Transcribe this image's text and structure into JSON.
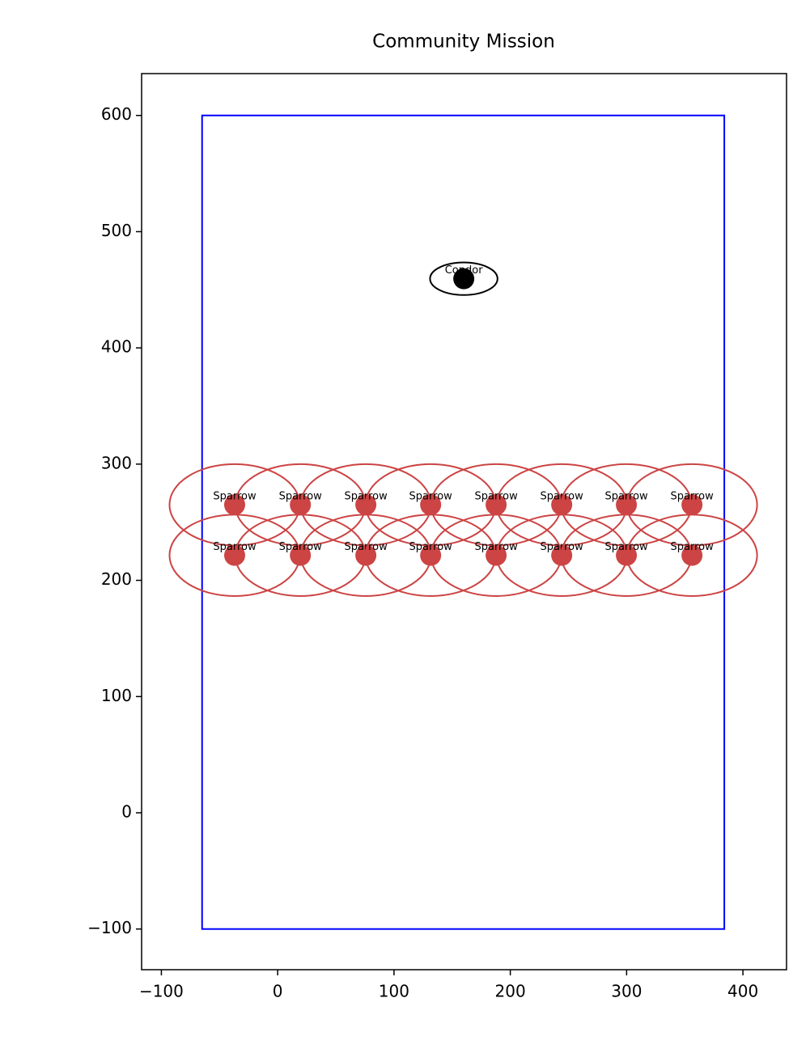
{
  "chart_data": {
    "type": "scatter",
    "title": "Community Mission",
    "xlim": [
      -117,
      437.5
    ],
    "ylim": [
      -135,
      636
    ],
    "xticks": [
      {
        "value": -100,
        "label": "−100"
      },
      0,
      100,
      200,
      300,
      400
    ],
    "yticks": [
      {
        "value": -100,
        "label": "−100"
      },
      0,
      100,
      200,
      300,
      400,
      500,
      600
    ],
    "region": {
      "x": [
        -65,
        384
      ],
      "y": [
        -100,
        600
      ],
      "color": "#0000ff"
    },
    "agents": [
      {
        "label": "Condor",
        "x": 160,
        "y": 459.5,
        "rx": 29,
        "ry": 14,
        "color": "#000000"
      },
      {
        "label": "Sparrow",
        "x": -37,
        "y": 265,
        "rx": 56,
        "ry": 35,
        "color": "#cc4444"
      },
      {
        "label": "Sparrow",
        "x": 19.5,
        "y": 265,
        "rx": 56,
        "ry": 35,
        "color": "#cc4444"
      },
      {
        "label": "Sparrow",
        "x": 75.8,
        "y": 265,
        "rx": 56,
        "ry": 35,
        "color": "#cc4444"
      },
      {
        "label": "Sparrow",
        "x": 131.5,
        "y": 265,
        "rx": 56,
        "ry": 35,
        "color": "#cc4444"
      },
      {
        "label": "Sparrow",
        "x": 187.8,
        "y": 265,
        "rx": 56,
        "ry": 35,
        "color": "#cc4444"
      },
      {
        "label": "Sparrow",
        "x": 244.2,
        "y": 265,
        "rx": 56,
        "ry": 35,
        "color": "#cc4444"
      },
      {
        "label": "Sparrow",
        "x": 299.8,
        "y": 265,
        "rx": 56,
        "ry": 35,
        "color": "#cc4444"
      },
      {
        "label": "Sparrow",
        "x": 356.2,
        "y": 265,
        "rx": 56,
        "ry": 35,
        "color": "#cc4444"
      },
      {
        "label": "Sparrow",
        "x": -37,
        "y": 221.5,
        "rx": 56,
        "ry": 35,
        "color": "#cc4444"
      },
      {
        "label": "Sparrow",
        "x": 19.5,
        "y": 221.5,
        "rx": 56,
        "ry": 35,
        "color": "#cc4444"
      },
      {
        "label": "Sparrow",
        "x": 75.8,
        "y": 221.5,
        "rx": 56,
        "ry": 35,
        "color": "#cc4444"
      },
      {
        "label": "Sparrow",
        "x": 131.5,
        "y": 221.5,
        "rx": 56,
        "ry": 35,
        "color": "#cc4444"
      },
      {
        "label": "Sparrow",
        "x": 187.8,
        "y": 221.5,
        "rx": 56,
        "ry": 35,
        "color": "#cc4444"
      },
      {
        "label": "Sparrow",
        "x": 244.2,
        "y": 221.5,
        "rx": 56,
        "ry": 35,
        "color": "#cc4444"
      },
      {
        "label": "Sparrow",
        "x": 299.8,
        "y": 221.5,
        "rx": 56,
        "ry": 35,
        "color": "#cc4444"
      },
      {
        "label": "Sparrow",
        "x": 356.2,
        "y": 221.5,
        "rx": 56,
        "ry": 35,
        "color": "#cc4444"
      }
    ]
  }
}
